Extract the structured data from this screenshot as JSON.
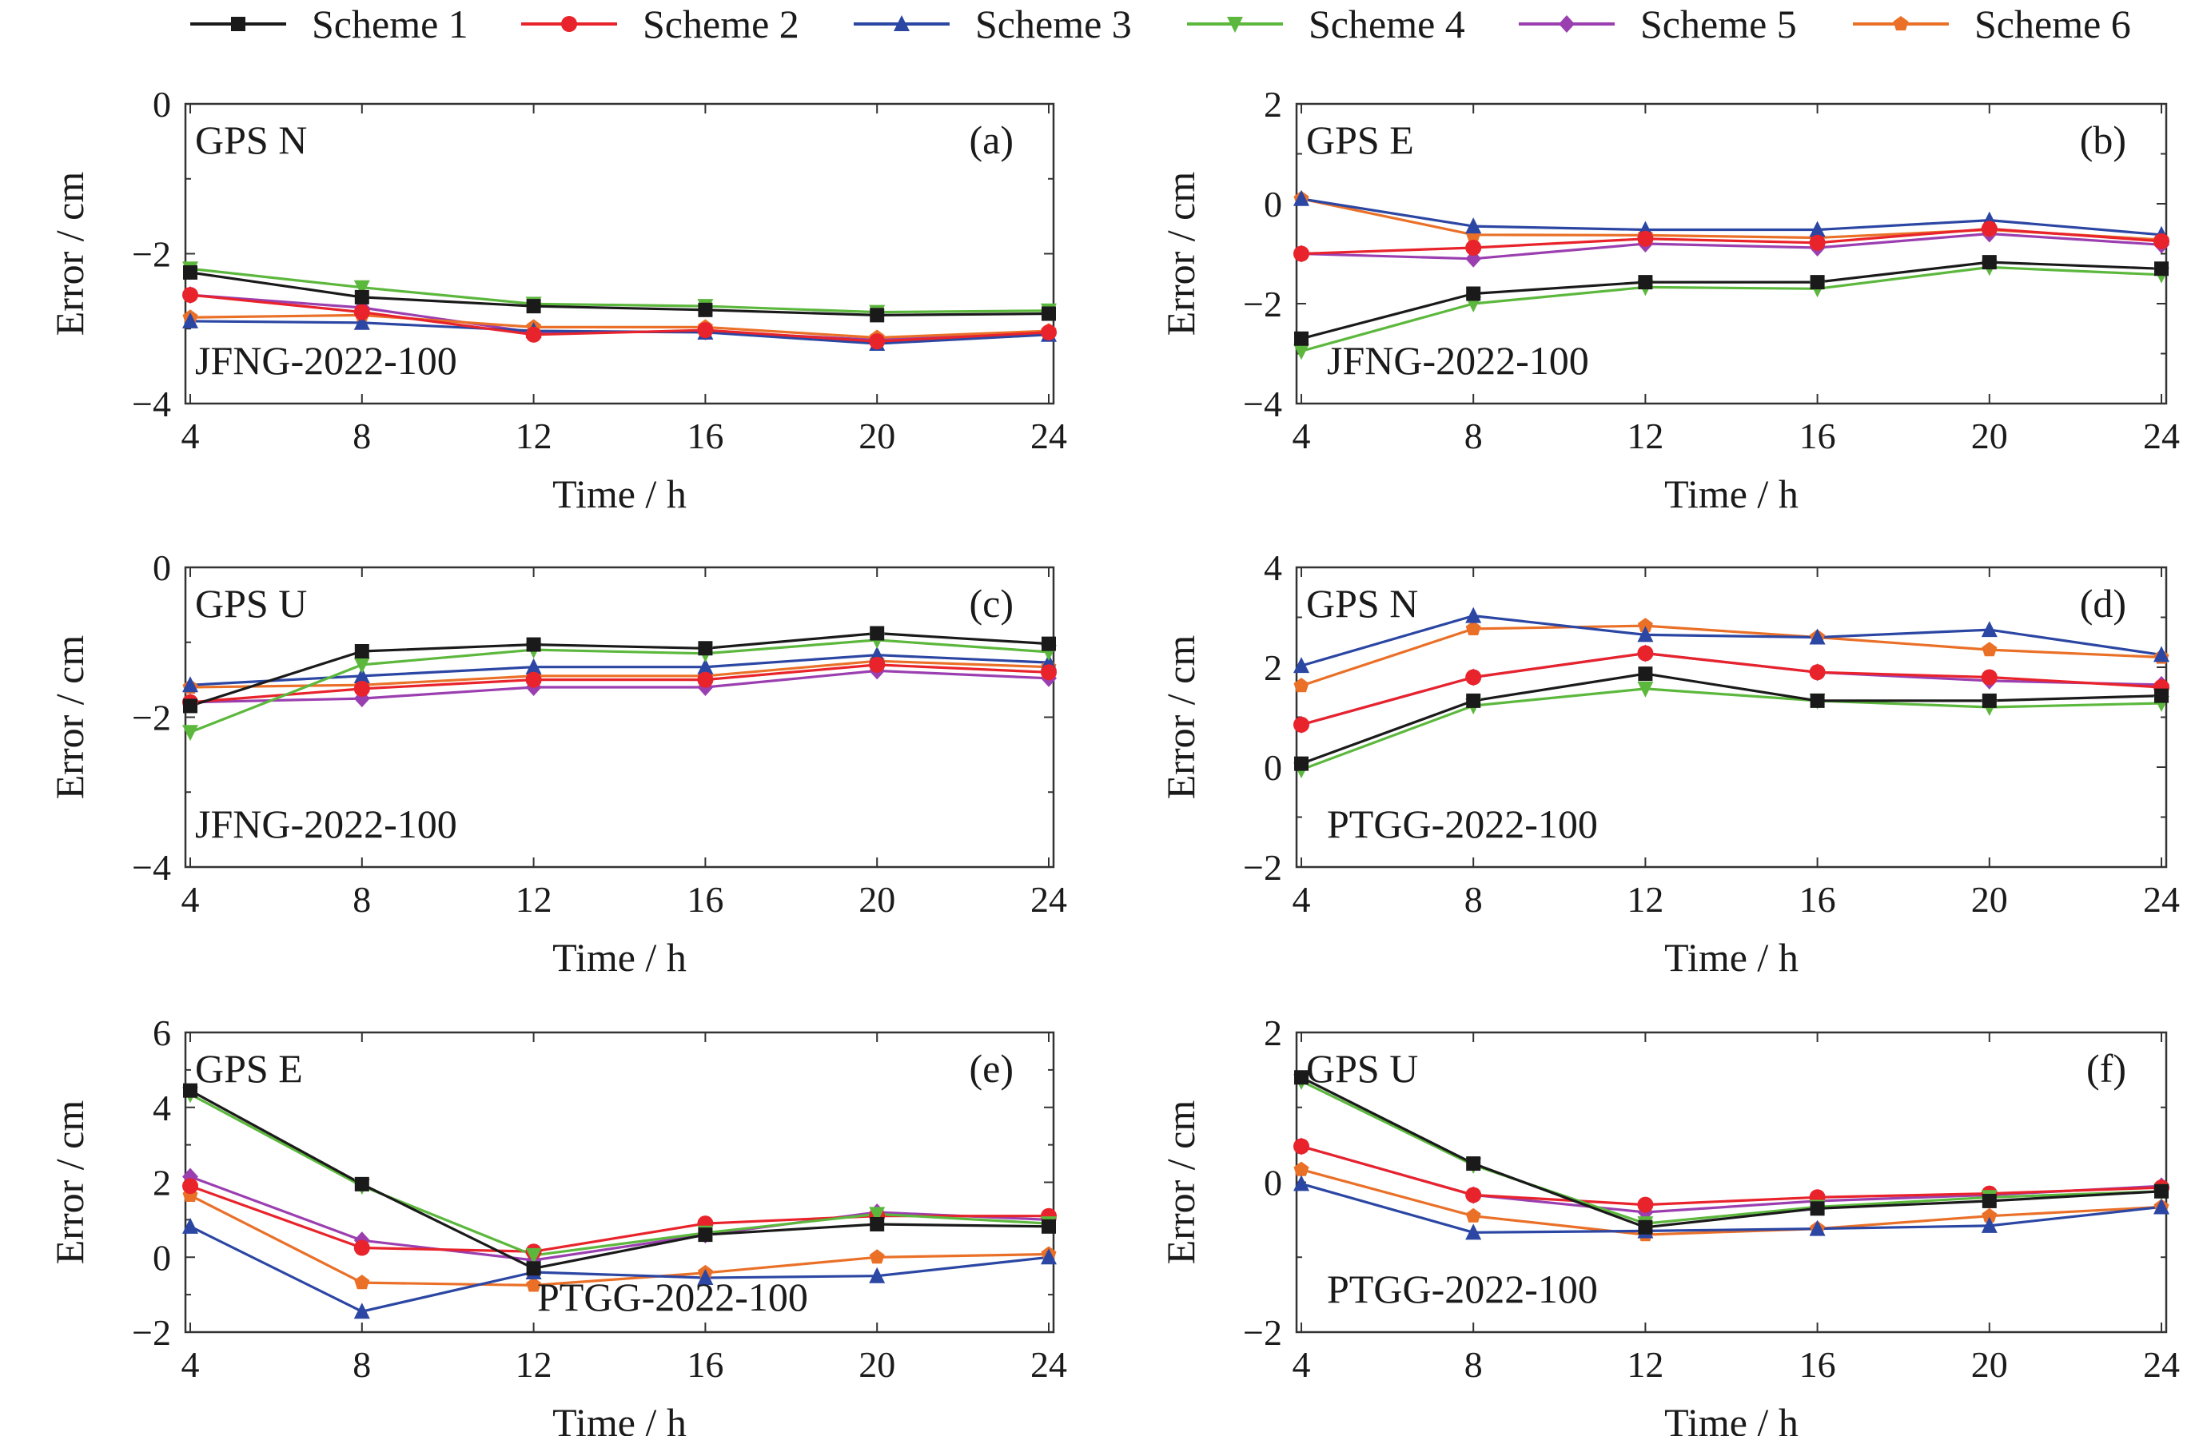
{
  "legend": {
    "placement": "top",
    "entries": [
      {
        "name": "Scheme 1",
        "color": "#1a1a1a",
        "marker": "square"
      },
      {
        "name": "Scheme 2",
        "color": "#e8232b",
        "marker": "circle"
      },
      {
        "name": "Scheme 3",
        "color": "#2b46a3",
        "marker": "triangle-up"
      },
      {
        "name": "Scheme 4",
        "color": "#5cb83d",
        "marker": "triangle-down"
      },
      {
        "name": "Scheme 5",
        "color": "#9b3fb0",
        "marker": "diamond"
      },
      {
        "name": "Scheme 6",
        "color": "#ea7028",
        "marker": "pentagon"
      }
    ]
  },
  "chart_data": [
    {
      "type": "line",
      "panel_label": "(a)",
      "component": "GPS N",
      "station": "JFNG-2022-100",
      "xlabel": "Time / h",
      "ylabel": "Error / cm",
      "x": [
        4,
        8,
        12,
        16,
        20,
        24
      ],
      "xticks": [
        4,
        8,
        12,
        16,
        20,
        24
      ],
      "ylim": [
        -4,
        0
      ],
      "yticks": [
        -4,
        -2,
        0
      ],
      "grid": false,
      "series": [
        {
          "name": "Scheme 1",
          "values": [
            -2.25,
            -2.58,
            -2.7,
            -2.75,
            -2.82,
            -2.8
          ]
        },
        {
          "name": "Scheme 2",
          "values": [
            -2.55,
            -2.78,
            -3.08,
            -3.02,
            -3.17,
            -3.05
          ]
        },
        {
          "name": "Scheme 3",
          "values": [
            -2.9,
            -2.92,
            -3.03,
            -3.05,
            -3.2,
            -3.08
          ]
        },
        {
          "name": "Scheme 4",
          "values": [
            -2.2,
            -2.45,
            -2.67,
            -2.7,
            -2.78,
            -2.76
          ]
        },
        {
          "name": "Scheme 5",
          "values": [
            -2.55,
            -2.72,
            -3.05,
            -3.04,
            -3.15,
            -3.06
          ]
        },
        {
          "name": "Scheme 6",
          "values": [
            -2.85,
            -2.82,
            -2.98,
            -2.98,
            -3.12,
            -3.03
          ]
        }
      ]
    },
    {
      "type": "line",
      "panel_label": "(b)",
      "component": "GPS E",
      "station": "JFNG-2022-100",
      "xlabel": "Time / h",
      "ylabel": "Error / cm",
      "x": [
        4,
        8,
        12,
        16,
        20,
        24
      ],
      "xticks": [
        4,
        8,
        12,
        16,
        20,
        24
      ],
      "ylim": [
        -4,
        2
      ],
      "yticks": [
        -4,
        -2,
        0,
        2
      ],
      "grid": false,
      "series": [
        {
          "name": "Scheme 1",
          "values": [
            -2.7,
            -1.8,
            -1.57,
            -1.57,
            -1.17,
            -1.3
          ]
        },
        {
          "name": "Scheme 2",
          "values": [
            -1.0,
            -0.88,
            -0.7,
            -0.78,
            -0.5,
            -0.75
          ]
        },
        {
          "name": "Scheme 3",
          "values": [
            0.1,
            -0.45,
            -0.52,
            -0.52,
            -0.33,
            -0.62
          ]
        },
        {
          "name": "Scheme 4",
          "values": [
            -2.95,
            -2.0,
            -1.67,
            -1.7,
            -1.27,
            -1.42
          ]
        },
        {
          "name": "Scheme 5",
          "values": [
            -1.0,
            -1.1,
            -0.8,
            -0.88,
            -0.6,
            -0.82
          ]
        },
        {
          "name": "Scheme 6",
          "values": [
            0.1,
            -0.62,
            -0.63,
            -0.68,
            -0.52,
            -0.72
          ]
        }
      ]
    },
    {
      "type": "line",
      "panel_label": "(c)",
      "component": "GPS U",
      "station": "JFNG-2022-100",
      "xlabel": "Time / h",
      "ylabel": "Error / cm",
      "x": [
        4,
        8,
        12,
        16,
        20,
        24
      ],
      "xticks": [
        4,
        8,
        12,
        16,
        20,
        24
      ],
      "ylim": [
        -4,
        0
      ],
      "yticks": [
        -4,
        -2,
        0
      ],
      "grid": false,
      "series": [
        {
          "name": "Scheme 1",
          "values": [
            -1.85,
            -1.12,
            -1.03,
            -1.08,
            -0.88,
            -1.02
          ]
        },
        {
          "name": "Scheme 2",
          "values": [
            -1.8,
            -1.62,
            -1.5,
            -1.5,
            -1.3,
            -1.4
          ]
        },
        {
          "name": "Scheme 3",
          "values": [
            -1.57,
            -1.45,
            -1.33,
            -1.33,
            -1.17,
            -1.27
          ]
        },
        {
          "name": "Scheme 4",
          "values": [
            -2.2,
            -1.3,
            -1.1,
            -1.15,
            -0.97,
            -1.13
          ]
        },
        {
          "name": "Scheme 5",
          "values": [
            -1.8,
            -1.75,
            -1.6,
            -1.6,
            -1.38,
            -1.48
          ]
        },
        {
          "name": "Scheme 6",
          "values": [
            -1.6,
            -1.57,
            -1.45,
            -1.45,
            -1.25,
            -1.33
          ]
        }
      ]
    },
    {
      "type": "line",
      "panel_label": "(d)",
      "component": "GPS N",
      "station": "PTGG-2022-100",
      "xlabel": "Time / h",
      "ylabel": "Error / cm",
      "x": [
        4,
        8,
        12,
        16,
        20,
        24
      ],
      "xticks": [
        4,
        8,
        12,
        16,
        20,
        24
      ],
      "ylim": [
        -2,
        4
      ],
      "yticks": [
        -2,
        0,
        2,
        4
      ],
      "grid": false,
      "series": [
        {
          "name": "Scheme 1",
          "values": [
            0.07,
            1.33,
            1.87,
            1.33,
            1.33,
            1.43
          ]
        },
        {
          "name": "Scheme 2",
          "values": [
            0.85,
            1.8,
            2.28,
            1.9,
            1.8,
            1.6
          ]
        },
        {
          "name": "Scheme 3",
          "values": [
            2.03,
            3.03,
            2.65,
            2.6,
            2.75,
            2.25
          ]
        },
        {
          "name": "Scheme 4",
          "values": [
            -0.05,
            1.23,
            1.57,
            1.33,
            1.2,
            1.28
          ]
        },
        {
          "name": "Scheme 5",
          "values": [
            0.85,
            1.8,
            2.28,
            1.9,
            1.73,
            1.65
          ]
        },
        {
          "name": "Scheme 6",
          "values": [
            1.63,
            2.77,
            2.83,
            2.6,
            2.35,
            2.2
          ]
        }
      ]
    },
    {
      "type": "line",
      "panel_label": "(e)",
      "component": "GPS E",
      "station": "PTGG-2022-100",
      "xlabel": "Time / h",
      "ylabel": "Error / cm",
      "x": [
        4,
        8,
        12,
        16,
        20,
        24
      ],
      "xticks": [
        4,
        8,
        12,
        16,
        20,
        24
      ],
      "ylim": [
        -2,
        6
      ],
      "yticks": [
        -2,
        0,
        2,
        4,
        6
      ],
      "grid": false,
      "series": [
        {
          "name": "Scheme 1",
          "values": [
            4.45,
            1.95,
            -0.3,
            0.6,
            0.88,
            0.82
          ]
        },
        {
          "name": "Scheme 2",
          "values": [
            1.9,
            0.25,
            0.15,
            0.9,
            1.1,
            1.1
          ]
        },
        {
          "name": "Scheme 3",
          "values": [
            0.82,
            -1.45,
            -0.4,
            -0.55,
            -0.5,
            0.0
          ]
        },
        {
          "name": "Scheme 4",
          "values": [
            4.35,
            1.9,
            0.05,
            0.65,
            1.15,
            0.9
          ]
        },
        {
          "name": "Scheme 5",
          "values": [
            2.15,
            0.45,
            -0.08,
            0.6,
            1.2,
            1.0
          ]
        },
        {
          "name": "Scheme 6",
          "values": [
            1.65,
            -0.68,
            -0.75,
            -0.42,
            0.0,
            0.08
          ]
        }
      ]
    },
    {
      "type": "line",
      "panel_label": "(f)",
      "component": "GPS U",
      "station": "PTGG-2022-100",
      "xlabel": "Time / h",
      "ylabel": "Error / cm",
      "x": [
        4,
        8,
        12,
        16,
        20,
        24
      ],
      "xticks": [
        4,
        8,
        12,
        16,
        20,
        24
      ],
      "ylim": [
        -2,
        2
      ],
      "yticks": [
        -2,
        0,
        2
      ],
      "grid": false,
      "series": [
        {
          "name": "Scheme 1",
          "values": [
            1.4,
            0.25,
            -0.6,
            -0.35,
            -0.25,
            -0.12
          ]
        },
        {
          "name": "Scheme 2",
          "values": [
            0.48,
            -0.17,
            -0.3,
            -0.2,
            -0.15,
            -0.07
          ]
        },
        {
          "name": "Scheme 3",
          "values": [
            -0.02,
            -0.67,
            -0.65,
            -0.62,
            -0.58,
            -0.33
          ]
        },
        {
          "name": "Scheme 4",
          "values": [
            1.35,
            0.23,
            -0.55,
            -0.33,
            -0.2,
            -0.12
          ]
        },
        {
          "name": "Scheme 5",
          "values": [
            0.48,
            -0.17,
            -0.4,
            -0.25,
            -0.17,
            -0.05
          ]
        },
        {
          "name": "Scheme 6",
          "values": [
            0.17,
            -0.45,
            -0.7,
            -0.62,
            -0.45,
            -0.33
          ]
        }
      ]
    }
  ]
}
